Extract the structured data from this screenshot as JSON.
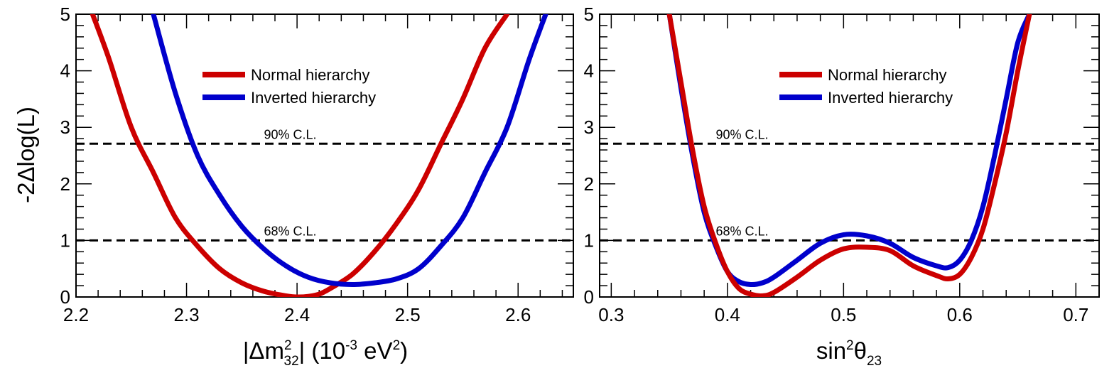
{
  "ylabel": "-2Δlog(L)",
  "chart_data": [
    {
      "type": "line",
      "id": "left",
      "xlabel": {
        "prefix": "|Δm",
        "sup": "2",
        "sub": "32",
        "mid": "| (10",
        "exp": "-3",
        "unit": " eV",
        "unitsup": "2",
        "close": ")"
      },
      "xlim": [
        2.2,
        2.65
      ],
      "ylim": [
        0,
        5
      ],
      "xticks": [
        "2.2",
        "2.3",
        "2.4",
        "2.5",
        "2.6"
      ],
      "yticks": [
        "0",
        "1",
        "2",
        "3",
        "4",
        "5"
      ],
      "cl_lines": [
        {
          "value": 1.0,
          "label": "68% C.L.",
          "label_x": 2.37
        },
        {
          "value": 2.71,
          "label": "90% C.L.",
          "label_x": 2.37
        }
      ],
      "legend": {
        "position": "top-center"
      },
      "series": [
        {
          "name": "Normal hierarchy",
          "color": "#cc0000",
          "x": [
            2.215,
            2.23,
            2.25,
            2.27,
            2.29,
            2.31,
            2.33,
            2.35,
            2.37,
            2.39,
            2.4,
            2.41,
            2.42,
            2.43,
            2.45,
            2.47,
            2.49,
            2.51,
            2.53,
            2.55,
            2.57,
            2.59
          ],
          "y": [
            5.0,
            4.2,
            3.0,
            2.2,
            1.4,
            0.9,
            0.5,
            0.25,
            0.1,
            0.02,
            0.0,
            0.01,
            0.05,
            0.15,
            0.4,
            0.8,
            1.3,
            1.9,
            2.7,
            3.5,
            4.4,
            5.0
          ]
        },
        {
          "name": "Inverted hierarchy",
          "color": "#0000cc",
          "x": [
            2.27,
            2.29,
            2.31,
            2.33,
            2.35,
            2.37,
            2.39,
            2.41,
            2.43,
            2.45,
            2.47,
            2.49,
            2.51,
            2.53,
            2.55,
            2.57,
            2.59,
            2.61,
            2.625
          ],
          "y": [
            5.0,
            3.6,
            2.5,
            1.8,
            1.25,
            0.85,
            0.55,
            0.35,
            0.25,
            0.22,
            0.25,
            0.32,
            0.5,
            0.9,
            1.4,
            2.2,
            3.0,
            4.2,
            5.0
          ]
        }
      ]
    },
    {
      "type": "line",
      "id": "right",
      "xlabel": {
        "prefix": "sin",
        "sup": "2",
        "theta": "θ",
        "sub": "23"
      },
      "xlim": [
        0.29,
        0.72
      ],
      "ylim": [
        0,
        5
      ],
      "xticks": [
        "0.3",
        "0.4",
        "0.5",
        "0.6",
        "0.7"
      ],
      "yticks": [
        "0",
        "1",
        "2",
        "3",
        "4",
        "5"
      ],
      "cl_lines": [
        {
          "value": 1.0,
          "label": "68% C.L.",
          "label_x": 0.39
        },
        {
          "value": 2.71,
          "label": "90% C.L.",
          "label_x": 0.39
        }
      ],
      "legend": {
        "position": "top-center"
      },
      "series": [
        {
          "name": "Normal hierarchy",
          "color": "#cc0000",
          "x": [
            0.35,
            0.36,
            0.37,
            0.38,
            0.39,
            0.4,
            0.41,
            0.42,
            0.43,
            0.44,
            0.46,
            0.48,
            0.5,
            0.52,
            0.54,
            0.56,
            0.58,
            0.59,
            0.6,
            0.61,
            0.62,
            0.63,
            0.64,
            0.65,
            0.66
          ],
          "y": [
            5.0,
            3.8,
            2.6,
            1.6,
            0.95,
            0.45,
            0.15,
            0.05,
            0.02,
            0.08,
            0.35,
            0.65,
            0.85,
            0.88,
            0.82,
            0.55,
            0.38,
            0.32,
            0.4,
            0.7,
            1.2,
            2.0,
            2.9,
            4.0,
            5.0
          ]
        },
        {
          "name": "Inverted hierarchy",
          "color": "#0000cc",
          "x": [
            0.35,
            0.36,
            0.37,
            0.38,
            0.39,
            0.4,
            0.41,
            0.42,
            0.43,
            0.44,
            0.46,
            0.48,
            0.5,
            0.52,
            0.54,
            0.56,
            0.58,
            0.59,
            0.6,
            0.61,
            0.62,
            0.63,
            0.64,
            0.65,
            0.66
          ],
          "y": [
            5.0,
            3.7,
            2.5,
            1.5,
            0.9,
            0.45,
            0.27,
            0.22,
            0.25,
            0.35,
            0.65,
            0.95,
            1.1,
            1.08,
            0.95,
            0.7,
            0.55,
            0.52,
            0.65,
            1.0,
            1.6,
            2.5,
            3.5,
            4.5,
            5.0
          ]
        }
      ]
    }
  ]
}
